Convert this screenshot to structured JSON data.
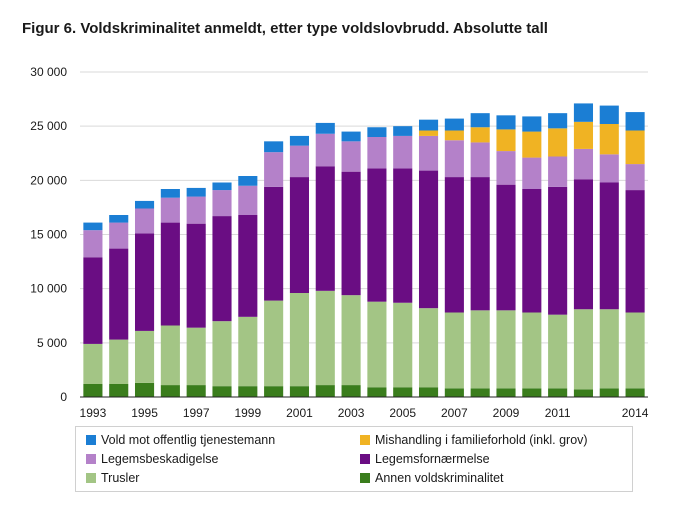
{
  "title": "Figur 6. Voldskriminalitet anmeldt, etter type voldslovbrudd. Absolutte tall",
  "chart_data": {
    "type": "bar",
    "stacked": true,
    "categories": [
      "1993",
      "1994",
      "1995",
      "1996",
      "1997",
      "1998",
      "1999",
      "2000",
      "2001",
      "2002",
      "2003",
      "2004",
      "2005",
      "2006",
      "2007",
      "2008",
      "2009",
      "2010",
      "2011",
      "2012",
      "2013",
      "2014"
    ],
    "x_tick_labels": [
      "1993",
      "",
      "1995",
      "",
      "1997",
      "",
      "1999",
      "",
      "2001",
      "",
      "2003",
      "",
      "2005",
      "",
      "2007",
      "",
      "2009",
      "",
      "2011",
      "",
      "",
      "2014"
    ],
    "y_ticks": [
      "0",
      "5 000",
      "10 000",
      "15 000",
      "20 000",
      "25 000",
      "30 000"
    ],
    "ylim": [
      0,
      30000
    ],
    "grid": true,
    "legend_position": "bottom",
    "series": [
      {
        "name": "Annen voldskriminalitet",
        "color": "#3a7d1c",
        "values": [
          1200,
          1200,
          1300,
          1100,
          1100,
          1000,
          1000,
          1000,
          1000,
          1100,
          1100,
          900,
          900,
          900,
          800,
          800,
          800,
          800,
          800,
          700,
          800,
          800
        ]
      },
      {
        "name": "Trusler",
        "color": "#a3c585",
        "values": [
          3700,
          4100,
          4800,
          5500,
          5300,
          6000,
          6400,
          7900,
          8600,
          8700,
          8300,
          7900,
          7800,
          7300,
          7000,
          7200,
          7200,
          7000,
          6800,
          7400,
          7300,
          7000
        ]
      },
      {
        "name": "Legemsfornærmelse",
        "color": "#6a0d83",
        "values": [
          8000,
          8400,
          9000,
          9500,
          9600,
          9700,
          9400,
          10500,
          10700,
          11500,
          11400,
          12300,
          12400,
          12700,
          12500,
          12300,
          11600,
          11400,
          11800,
          12000,
          11700,
          11300
        ]
      },
      {
        "name": "Legemsbeskadigelse",
        "color": "#b481c9",
        "values": [
          2500,
          2400,
          2300,
          2300,
          2500,
          2400,
          2700,
          3200,
          2900,
          3000,
          2800,
          2900,
          3000,
          3200,
          3400,
          3200,
          3100,
          2900,
          2800,
          2800,
          2600,
          2400
        ]
      },
      {
        "name": "Mishandling i familieforhold (inkl. grov)",
        "color": "#f0b323",
        "values": [
          0,
          0,
          0,
          0,
          0,
          0,
          0,
          0,
          0,
          0,
          0,
          0,
          0,
          500,
          900,
          1400,
          2000,
          2400,
          2600,
          2500,
          2800,
          3100
        ]
      },
      {
        "name": "Vold mot offentlig tjenestemann",
        "color": "#1b7ed4",
        "values": [
          700,
          700,
          700,
          800,
          800,
          700,
          900,
          1000,
          900,
          1000,
          900,
          900,
          900,
          1000,
          1100,
          1300,
          1300,
          1400,
          1400,
          1700,
          1700,
          1700
        ]
      }
    ]
  },
  "legend": [
    {
      "label": "Vold mot offentlig tjenestemann",
      "color": "#1b7ed4"
    },
    {
      "label": "Mishandling i familieforhold (inkl. grov)",
      "color": "#f0b323"
    },
    {
      "label": "Legemsbeskadigelse",
      "color": "#b481c9"
    },
    {
      "label": "Legemsfornærmelse",
      "color": "#6a0d83"
    },
    {
      "label": "Trusler",
      "color": "#a3c585"
    },
    {
      "label": "Annen voldskriminalitet",
      "color": "#3a7d1c"
    }
  ]
}
